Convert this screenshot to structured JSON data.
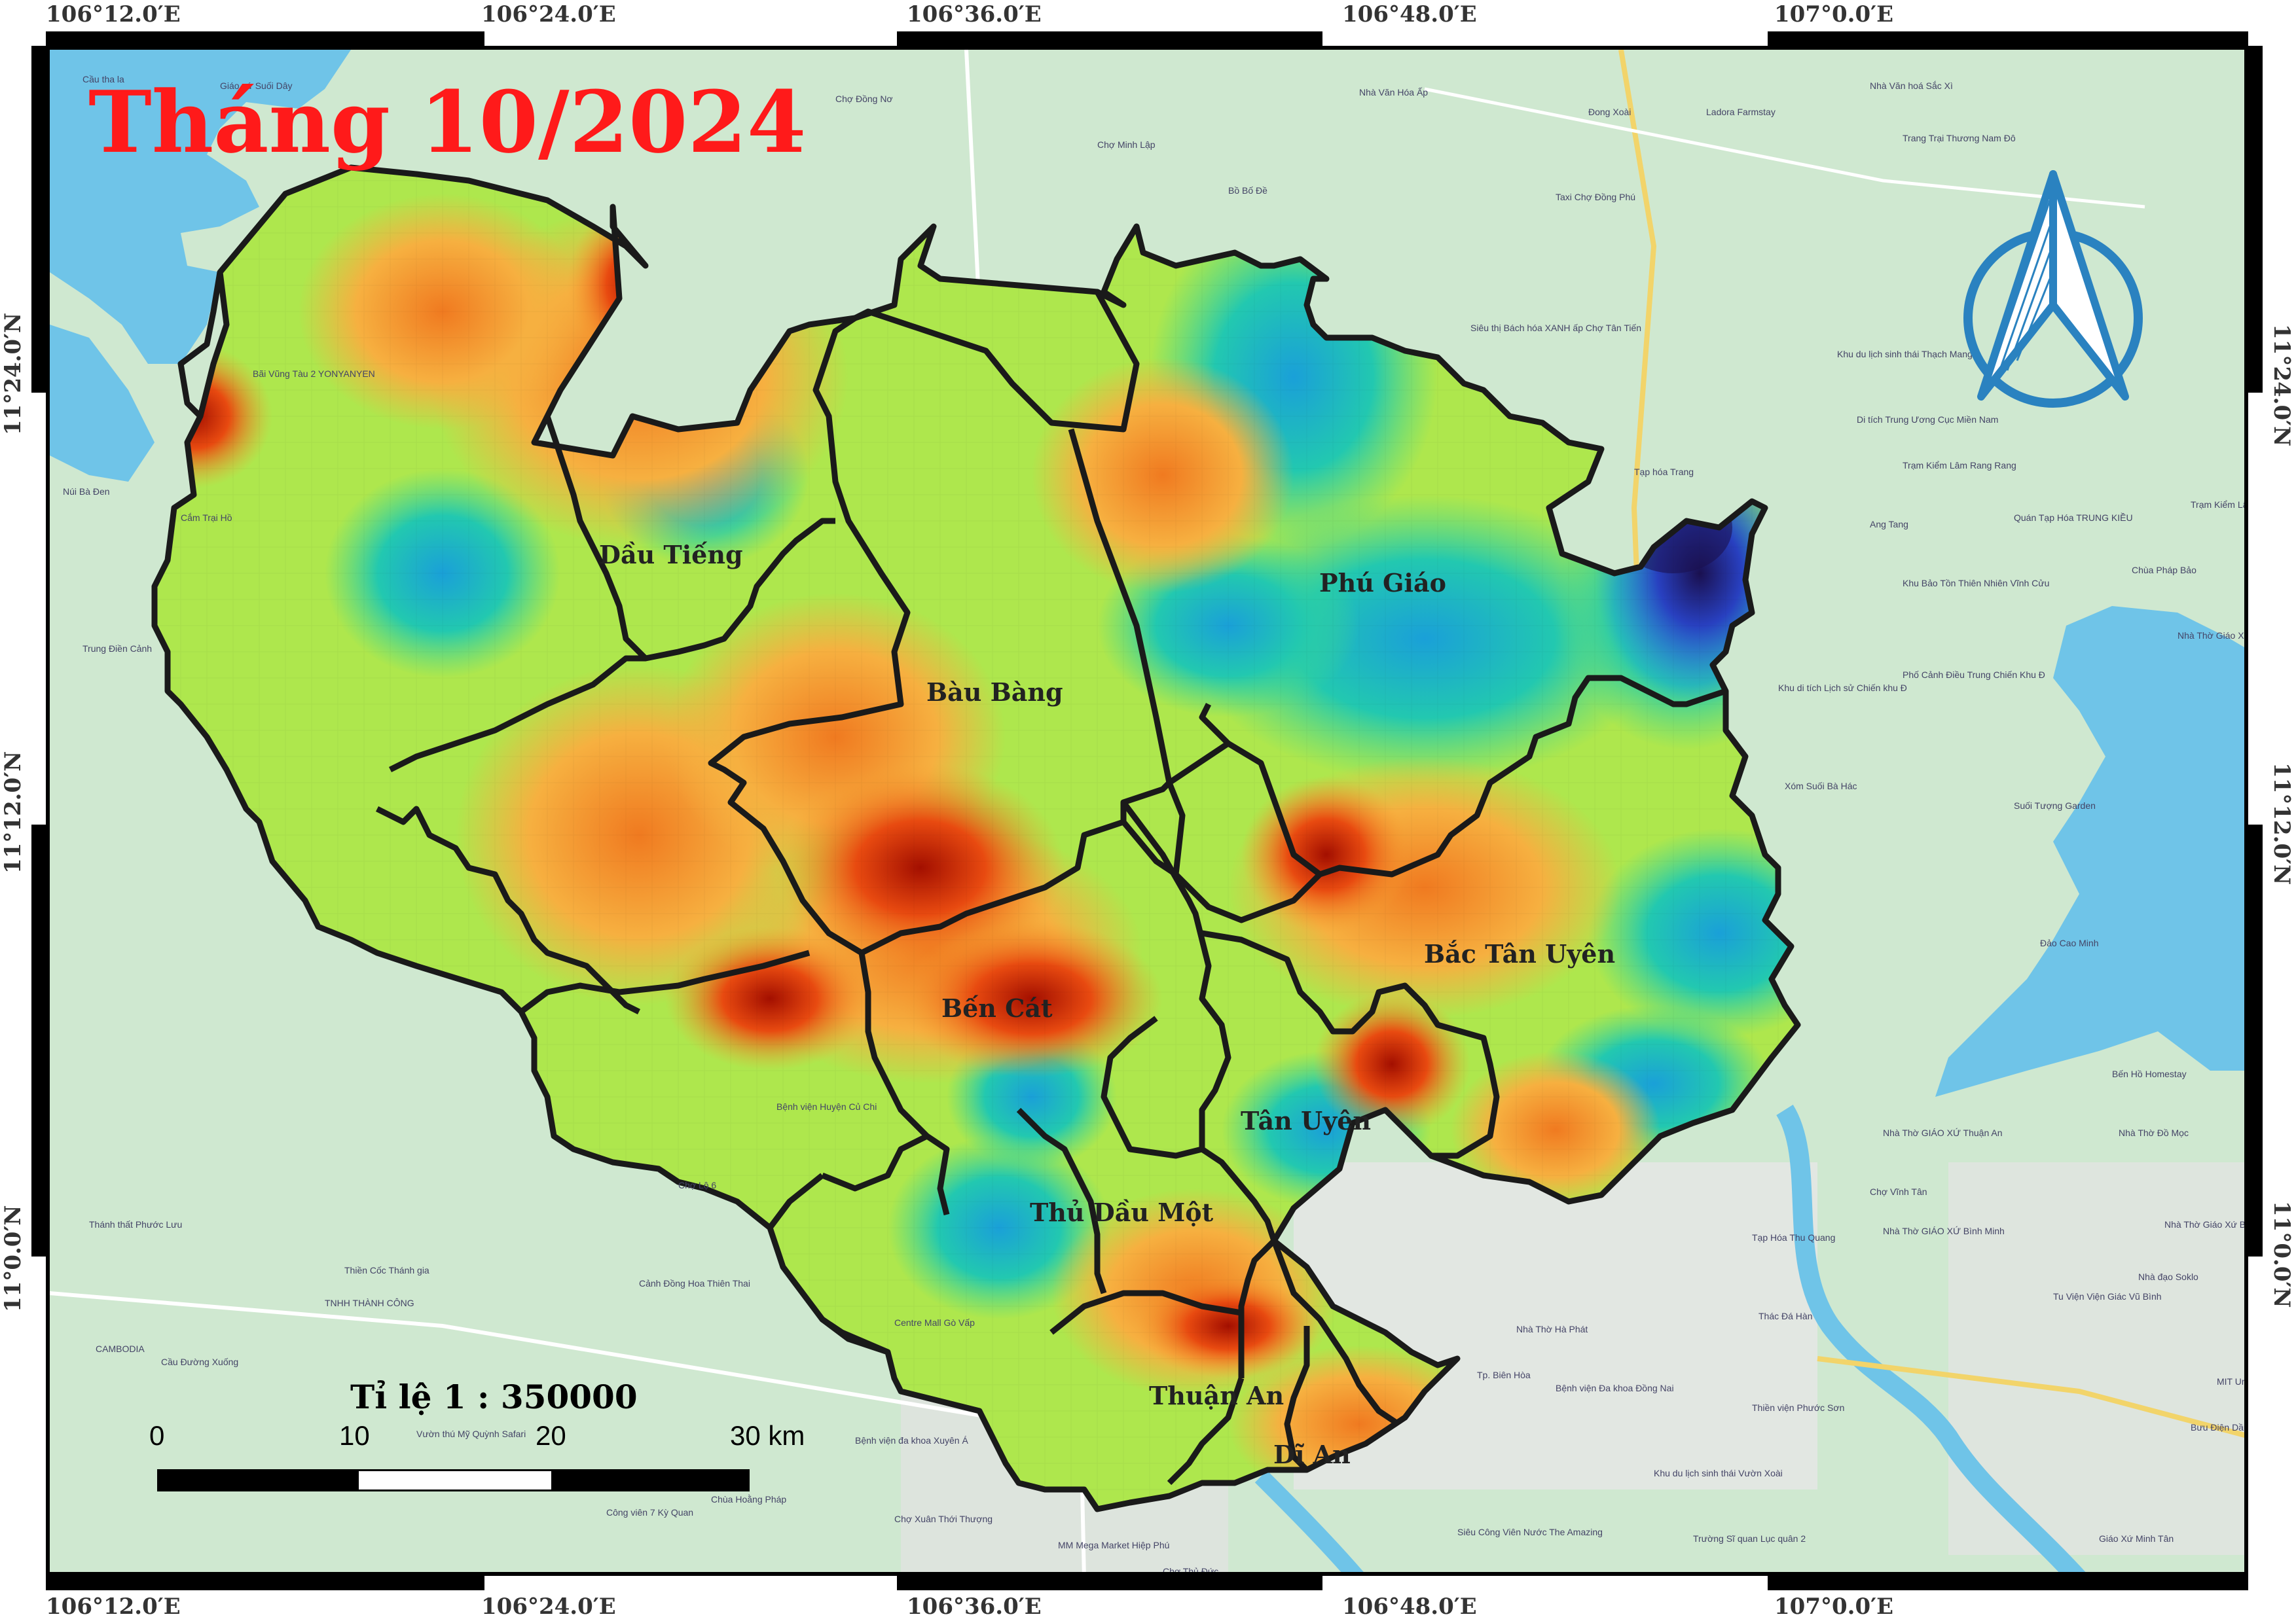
{
  "title": "Tháng 10/2024",
  "coords": {
    "top": [
      "106°12.0′E",
      "106°24.0′E",
      "106°36.0′E",
      "106°48.0′E",
      "107°0.0′E"
    ],
    "bottom": [
      "106°12.0′E",
      "106°24.0′E",
      "106°36.0′E",
      "106°48.0′E",
      "107°0.0′E"
    ],
    "left": [
      "11°24.0′N",
      "11°12.0′N",
      "11°0.0′N"
    ],
    "right": [
      "11°24.0′N",
      "11°12.0′N",
      "11°0.0′N"
    ]
  },
  "districts": [
    "Dầu Tiếng",
    "Phú Giáo",
    "Bàu Bàng",
    "Bắc Tân Uyên",
    "Bến Cát",
    "Tân Uyên",
    "Thủ Dầu Một",
    "Thuận An",
    "Dĩ An"
  ],
  "scale": {
    "title": "Tỉ lệ 1 : 350000",
    "labels": [
      "0",
      "10",
      "20",
      "30 km"
    ]
  },
  "colors": {
    "water": "#6fc4e8",
    "land": "#cfe8d0",
    "title": "#ff1a1a",
    "boundary": "#1a1a1a",
    "north_arrow": "#2a82c0"
  },
  "icons": [
    "north-arrow-icon"
  ]
}
